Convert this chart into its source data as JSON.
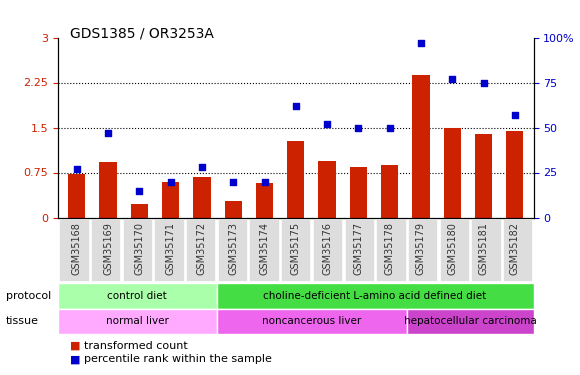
{
  "title": "GDS1385 / OR3253A",
  "samples": [
    "GSM35168",
    "GSM35169",
    "GSM35170",
    "GSM35171",
    "GSM35172",
    "GSM35173",
    "GSM35174",
    "GSM35175",
    "GSM35176",
    "GSM35177",
    "GSM35178",
    "GSM35179",
    "GSM35180",
    "GSM35181",
    "GSM35182"
  ],
  "bar_values": [
    0.72,
    0.92,
    0.22,
    0.6,
    0.68,
    0.28,
    0.58,
    1.28,
    0.95,
    0.85,
    0.88,
    2.38,
    1.5,
    1.4,
    1.45
  ],
  "dot_values_pct": [
    27,
    47,
    15,
    20,
    28,
    20,
    20,
    62,
    52,
    50,
    50,
    97,
    77,
    75,
    57
  ],
  "bar_color": "#cc2200",
  "dot_color": "#0000cc",
  "ylim_left": [
    0,
    3
  ],
  "ylim_right": [
    0,
    100
  ],
  "yticks_left": [
    0,
    0.75,
    1.5,
    2.25,
    3
  ],
  "yticks_right": [
    0,
    25,
    50,
    75,
    100
  ],
  "ytick_labels_left": [
    "0",
    "0.75",
    "1.5",
    "2.25",
    "3"
  ],
  "ytick_labels_right": [
    "0",
    "25",
    "50",
    "75",
    "100%"
  ],
  "hlines": [
    0.75,
    1.5,
    2.25
  ],
  "protocol_groups": [
    {
      "label": "control diet",
      "start": 0,
      "end": 4,
      "color": "#aaffaa"
    },
    {
      "label": "choline-deficient L-amino acid defined diet",
      "start": 5,
      "end": 14,
      "color": "#44dd44"
    }
  ],
  "tissue_groups": [
    {
      "label": "normal liver",
      "start": 0,
      "end": 4,
      "color": "#ffaaff"
    },
    {
      "label": "noncancerous liver",
      "start": 5,
      "end": 10,
      "color": "#ee66ee"
    },
    {
      "label": "hepatocellular carcinoma",
      "start": 11,
      "end": 14,
      "color": "#cc44cc"
    }
  ],
  "protocol_row_label": "protocol",
  "tissue_row_label": "tissue",
  "legend_bar_label": "transformed count",
  "legend_dot_label": "percentile rank within the sample",
  "xlabel_color": "#333333",
  "left_axis_color": "#cc2200",
  "right_axis_color": "#0000cc",
  "background_color": "#f0f0f0",
  "plot_bg": "#ffffff"
}
